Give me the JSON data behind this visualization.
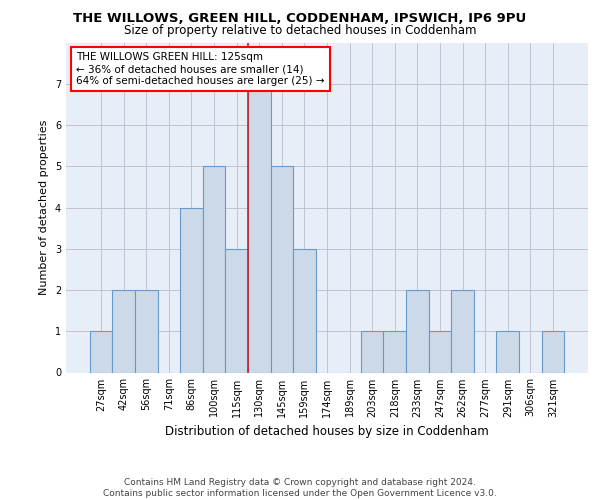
{
  "title": "THE WILLOWS, GREEN HILL, CODDENHAM, IPSWICH, IP6 9PU",
  "subtitle": "Size of property relative to detached houses in Coddenham",
  "xlabel": "Distribution of detached houses by size in Coddenham",
  "ylabel": "Number of detached properties",
  "footer1": "Contains HM Land Registry data © Crown copyright and database right 2024.",
  "footer2": "Contains public sector information licensed under the Open Government Licence v3.0.",
  "categories": [
    "27sqm",
    "42sqm",
    "56sqm",
    "71sqm",
    "86sqm",
    "100sqm",
    "115sqm",
    "130sqm",
    "145sqm",
    "159sqm",
    "174sqm",
    "189sqm",
    "203sqm",
    "218sqm",
    "233sqm",
    "247sqm",
    "262sqm",
    "277sqm",
    "291sqm",
    "306sqm",
    "321sqm"
  ],
  "values": [
    1,
    2,
    2,
    0,
    4,
    5,
    3,
    7,
    5,
    3,
    0,
    0,
    1,
    1,
    2,
    1,
    2,
    0,
    1,
    0,
    1
  ],
  "bar_color": "#ccd9e8",
  "bar_edge_color": "#6699cc",
  "bar_linewidth": 0.8,
  "annotation_line1": "THE WILLOWS GREEN HILL: 125sqm",
  "annotation_line2": "← 36% of detached houses are smaller (14)",
  "annotation_line3": "64% of semi-detached houses are larger (25) →",
  "vline_index": 6.5,
  "vline_color": "#cc2222",
  "ylim": [
    0,
    8
  ],
  "yticks": [
    0,
    1,
    2,
    3,
    4,
    5,
    6,
    7,
    8
  ],
  "grid_color": "#bbbbcc",
  "bg_color": "#e8eef8",
  "title_fontsize": 9.5,
  "subtitle_fontsize": 8.5,
  "ylabel_fontsize": 8,
  "xlabel_fontsize": 8.5,
  "tick_fontsize": 7,
  "annot_fontsize": 7.5,
  "footer_fontsize": 6.5
}
